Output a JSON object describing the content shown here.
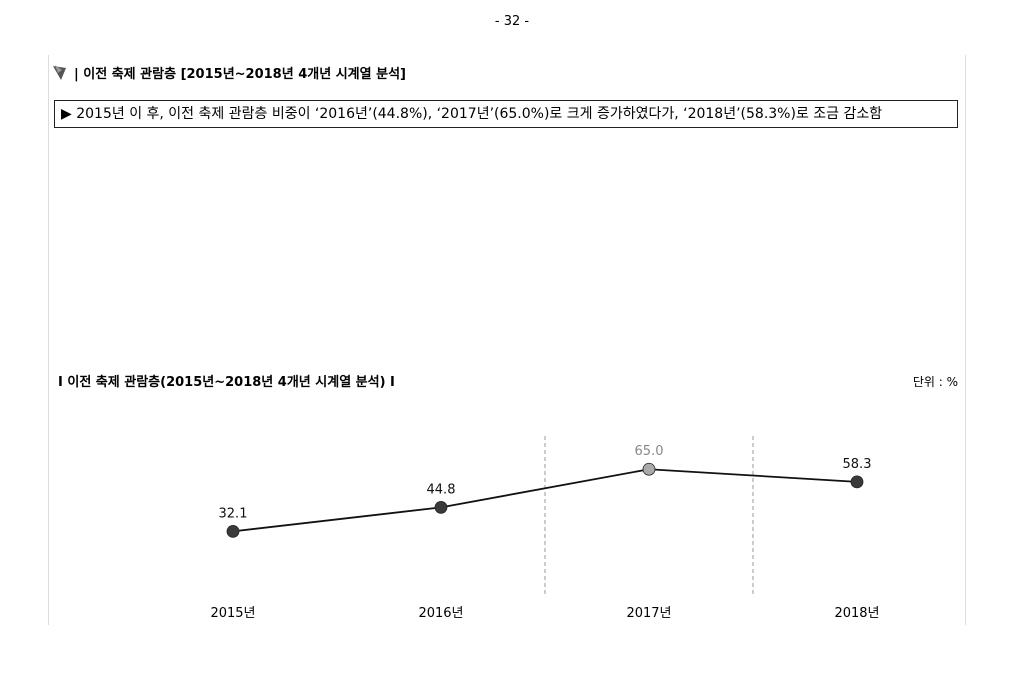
{
  "page_number": "- 32 -",
  "section_title": "| 이전 축제 관람층 [2015년~2018년 4개년 시계열 분석]",
  "summary": "2015년 이 후, 이전 축제 관람층 비중이 ‘2016년’(44.8%), ‘2017년’(65.0%)로 크게 증가하였다가, ‘2018년’(58.3%)로 조금 감소함",
  "chart_data": {
    "type": "line",
    "title": "I 이전 축제 관람층(2015년~2018년  4개년 시계열 분석) I",
    "unit": "단위 : %",
    "categories": [
      "2015년",
      "2016년",
      "2017년",
      "2018년"
    ],
    "values": [
      32.1,
      44.8,
      65.0,
      58.3
    ],
    "value_labels": [
      "32.1",
      "44.8",
      "65.0",
      "58.3"
    ],
    "color": "#111111",
    "point_colors": [
      "#3a3a3a",
      "#3a3a3a",
      "#aaaaaa",
      "#3a3a3a"
    ],
    "ylim": [
      0,
      90
    ]
  }
}
